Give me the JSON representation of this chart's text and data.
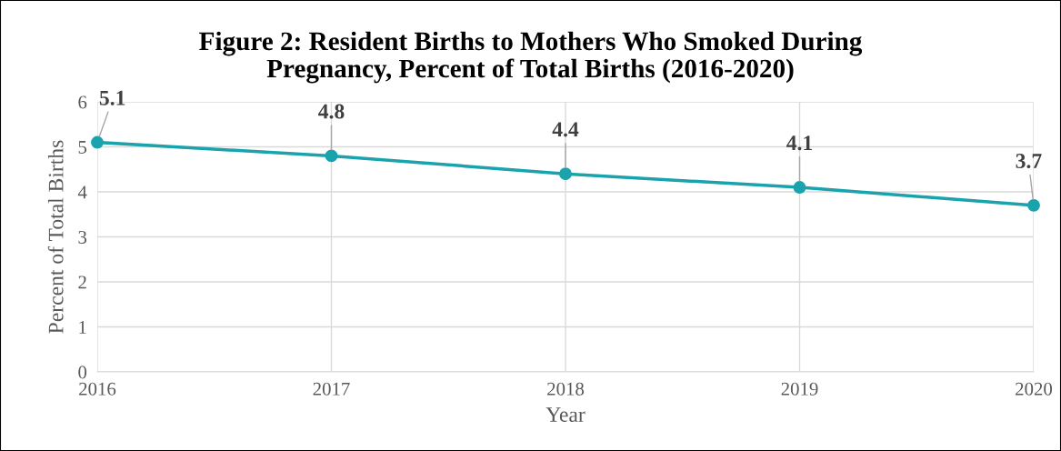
{
  "chart_data": {
    "type": "line",
    "title": "Figure 2: Resident Births to Mothers Who Smoked During\nPregnancy, Percent of Total Births (2016-2020)",
    "xlabel": "Year",
    "ylabel": "Percent of Total Births",
    "x": [
      2016,
      2017,
      2018,
      2019,
      2020
    ],
    "series": [
      {
        "color": "#1aa3ad",
        "values": [
          5.1,
          4.8,
          4.4,
          4.1,
          3.7
        ]
      }
    ],
    "xlim": [
      2016,
      2020
    ],
    "xticks": [
      2016,
      2017,
      2018,
      2019,
      2020
    ],
    "ylim": [
      0,
      6
    ],
    "yticks": [
      0,
      1,
      2,
      3,
      4,
      5,
      6
    ],
    "grid": true,
    "marker": "circle",
    "line_style": "solid",
    "data_labels": true
  }
}
